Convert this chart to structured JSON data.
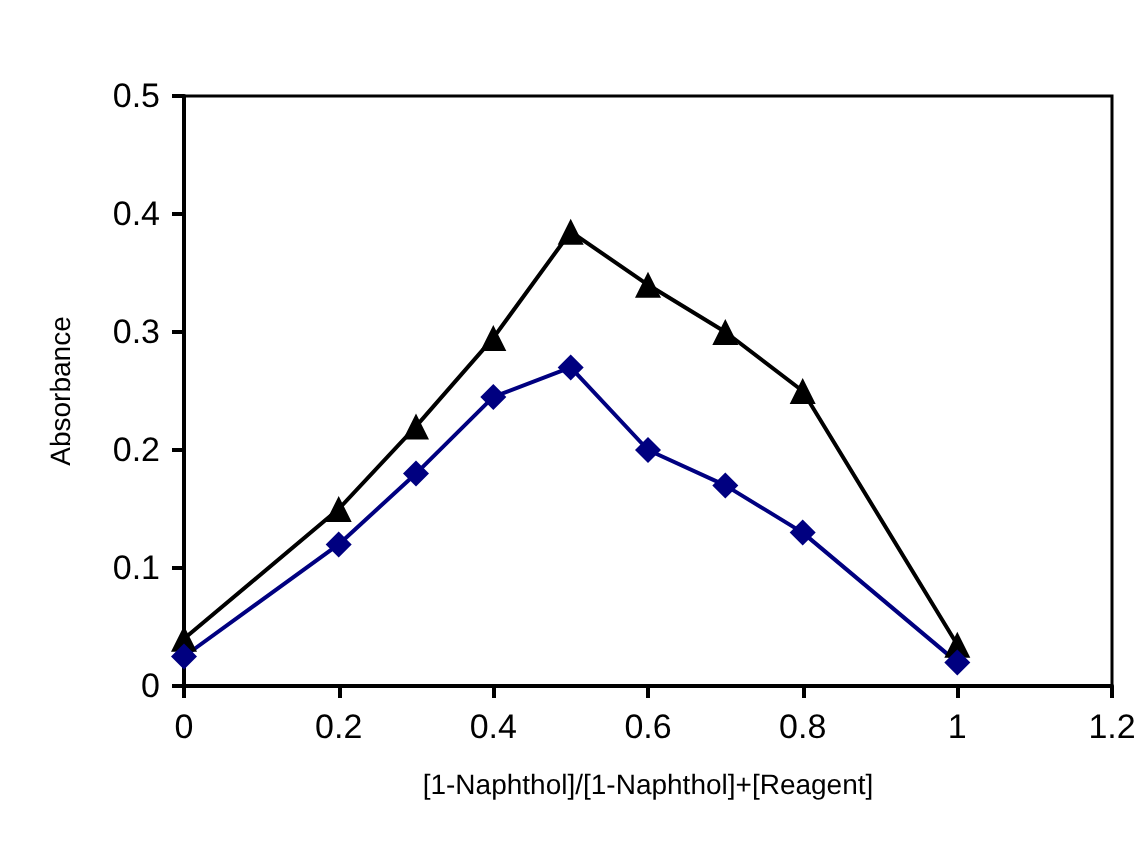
{
  "chart_data": {
    "type": "line",
    "xlabel": "[1-Naphthol]/[1-Naphthol]+[Reagent]",
    "ylabel": "Absorbance",
    "xlim": [
      0,
      1.2
    ],
    "xticks": [
      0,
      0.2,
      0.4,
      0.6,
      0.8,
      1,
      1.2
    ],
    "ylim": [
      0,
      0.5
    ],
    "yticks": [
      0,
      0.1,
      0.2,
      0.3,
      0.4,
      0.5
    ],
    "grid": false,
    "series": [
      {
        "color": "#000000",
        "marker": "triangle",
        "x": [
          0,
          0.2,
          0.3,
          0.4,
          0.5,
          0.6,
          0.7,
          0.8,
          1
        ],
        "values": [
          0.04,
          0.15,
          0.22,
          0.295,
          0.385,
          0.34,
          0.3,
          0.25,
          0.035
        ]
      },
      {
        "color": "#000080",
        "marker": "diamond",
        "x": [
          0,
          0.2,
          0.3,
          0.4,
          0.5,
          0.6,
          0.7,
          0.8,
          1
        ],
        "values": [
          0.025,
          0.12,
          0.18,
          0.245,
          0.27,
          0.2,
          0.17,
          0.13,
          0.02
        ]
      }
    ]
  }
}
